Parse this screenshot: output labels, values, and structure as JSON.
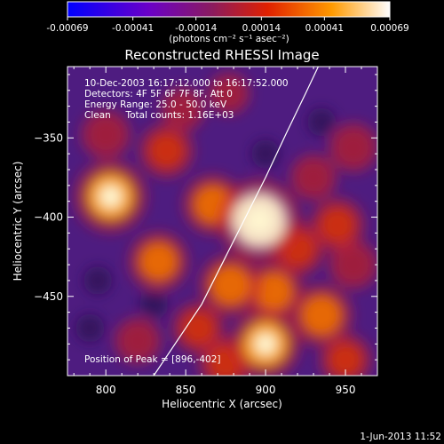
{
  "chart_data": {
    "type": "heatmap",
    "title": "Reconstructed RHESSI Image",
    "xlabel": "Heliocentric X (arcsec)",
    "ylabel": "Heliocentric Y (arcsec)",
    "xlim": [
      776,
      970
    ],
    "ylim": [
      -500,
      -305
    ],
    "xticks": [
      800,
      850,
      900,
      950
    ],
    "xtick_labels": [
      "800",
      "850",
      "900",
      "950"
    ],
    "yticks": [
      -350,
      -400,
      -450
    ],
    "ytick_labels": [
      "−350",
      "−400",
      "−450"
    ],
    "colorbar": {
      "min": -0.00069,
      "max": 0.00069,
      "ticks": [
        -0.00069,
        -0.00041,
        -0.00014,
        0.00014,
        0.00041,
        0.00069
      ],
      "tick_labels": [
        "-0.00069",
        "-0.00041",
        "-0.00014",
        "0.00014",
        "0.00041",
        "0.00069"
      ],
      "unit_label": "(photons cm⁻² s⁻¹ asec⁻²)",
      "colors": [
        "#0000ff",
        "#6a00c8",
        "#8b1b5e",
        "#e02000",
        "#ff9a00",
        "#ffffff"
      ]
    },
    "annotations": [
      "10-Dec-2003 16:17:12.000 to 16:17:52.000",
      "Detectors: 4F 5F 6F 7F 8F, Att 0",
      "Energy Range: 25.0 - 50.0 keV",
      "Clean     Total counts: 1.16E+03"
    ],
    "peak_label": "Position of Peak = [896,-402]",
    "peak": [
      896,
      -402
    ],
    "sources": [
      {
        "x": 896,
        "y": -402,
        "intensity": 1.0
      },
      {
        "x": 803,
        "y": -387,
        "intensity": 0.8
      },
      {
        "x": 867,
        "y": -392,
        "intensity": 0.55
      },
      {
        "x": 838,
        "y": -358,
        "intensity": 0.45
      },
      {
        "x": 800,
        "y": -348,
        "intensity": 0.35
      },
      {
        "x": 833,
        "y": -428,
        "intensity": 0.55
      },
      {
        "x": 878,
        "y": -443,
        "intensity": 0.6
      },
      {
        "x": 905,
        "y": -447,
        "intensity": 0.55
      },
      {
        "x": 900,
        "y": -480,
        "intensity": 0.75
      },
      {
        "x": 935,
        "y": -462,
        "intensity": 0.6
      },
      {
        "x": 945,
        "y": -405,
        "intensity": 0.45
      },
      {
        "x": 930,
        "y": -375,
        "intensity": 0.3
      },
      {
        "x": 955,
        "y": -356,
        "intensity": 0.35
      },
      {
        "x": 858,
        "y": -470,
        "intensity": 0.4
      },
      {
        "x": 875,
        "y": -492,
        "intensity": 0.45
      },
      {
        "x": 820,
        "y": -478,
        "intensity": 0.3
      },
      {
        "x": 950,
        "y": -490,
        "intensity": 0.4
      },
      {
        "x": 955,
        "y": -430,
        "intensity": 0.35
      },
      {
        "x": 848,
        "y": -332,
        "intensity": 0.25
      },
      {
        "x": 877,
        "y": -322,
        "intensity": 0.2
      },
      {
        "x": 920,
        "y": -420,
        "intensity": 0.45
      }
    ],
    "limb_curve": [
      [
        830,
        -500
      ],
      [
        860,
        -455
      ],
      [
        885,
        -405
      ],
      [
        900,
        -375
      ],
      [
        913,
        -347
      ],
      [
        925,
        -322
      ],
      [
        933,
        -305
      ]
    ],
    "background_value": -0.00022
  },
  "footer": {
    "timestamp": "1-Jun-2013 11:52"
  }
}
